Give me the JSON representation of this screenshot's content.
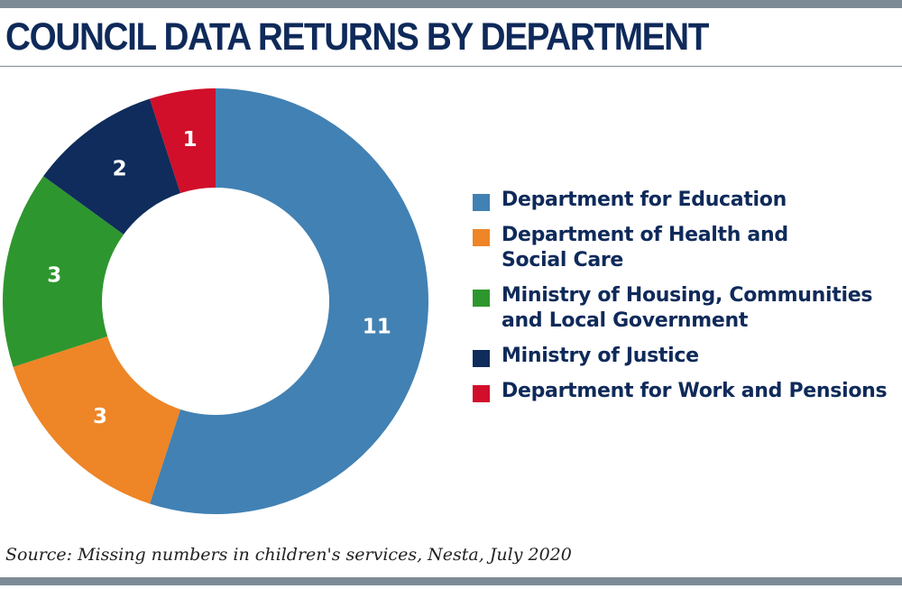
{
  "title": "COUNCIL DATA RETURNS BY DEPARTMENT",
  "source": "Source: Missing numbers in children's services, Nesta, July 2020",
  "chart_data": {
    "type": "pie",
    "donut": true,
    "title": "COUNCIL DATA RETURNS BY DEPARTMENT",
    "legend_position": "right",
    "slices": [
      {
        "name": "Department for Education",
        "value": 11,
        "color": "#4281b3"
      },
      {
        "name": "Department of Health and Social Care",
        "value": 3,
        "color": "#ee8526"
      },
      {
        "name": "Ministry of Housing, Communities and Local Government",
        "value": 3,
        "color": "#2e962e"
      },
      {
        "name": "Ministry of Justice",
        "value": 2,
        "color": "#0f2c5c"
      },
      {
        "name": "Department for Work and Pensions",
        "value": 1,
        "color": "#d10f2a"
      }
    ]
  },
  "legend": {
    "items": [
      {
        "lines": [
          "Department for Education"
        ],
        "color": "#4281b3"
      },
      {
        "lines": [
          "Department of Health and",
          "Social Care"
        ],
        "color": "#ee8526"
      },
      {
        "lines": [
          "Ministry of Housing, Communities",
          "and Local Government"
        ],
        "color": "#2e962e"
      },
      {
        "lines": [
          "Ministry of Justice"
        ],
        "color": "#0f2c5c"
      },
      {
        "lines": [
          "Department for Work and Pensions"
        ],
        "color": "#d10f2a"
      }
    ]
  }
}
